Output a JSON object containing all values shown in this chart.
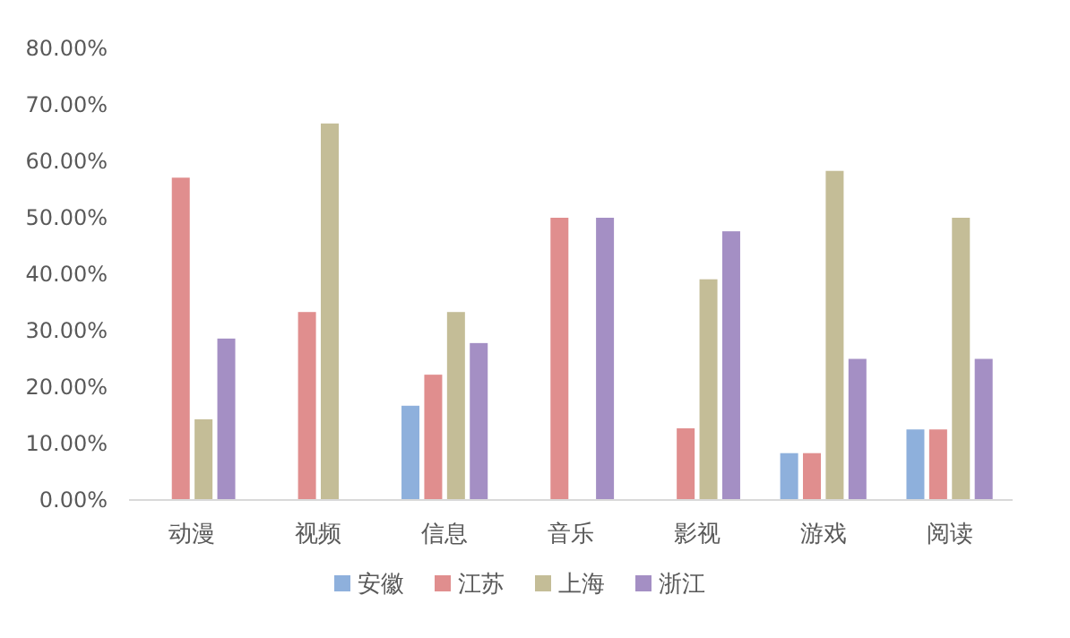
{
  "chart_data": {
    "type": "bar",
    "categories": [
      "动漫",
      "视频",
      "信息",
      "音乐",
      "影视",
      "游戏",
      "阅读"
    ],
    "series": [
      {
        "name": "安徽",
        "color": "#8eb0dc",
        "values": [
          0,
          0,
          16.7,
          0,
          0,
          8.3,
          12.5
        ]
      },
      {
        "name": "江苏",
        "color": "#e08e8e",
        "values": [
          57.1,
          33.3,
          22.2,
          50,
          12.7,
          8.3,
          12.5
        ]
      },
      {
        "name": "上海",
        "color": "#c4bd97",
        "values": [
          14.3,
          66.7,
          33.3,
          0,
          39.1,
          58.3,
          50
        ]
      },
      {
        "name": "浙江",
        "color": "#a48fc4",
        "values": [
          28.6,
          0,
          27.8,
          50,
          47.6,
          25,
          25
        ]
      }
    ],
    "ylim": [
      0,
      80
    ],
    "yticks": [
      {
        "value": 0,
        "label": "0.00%"
      },
      {
        "value": 10,
        "label": "10.00%"
      },
      {
        "value": 20,
        "label": "20.00%"
      },
      {
        "value": 30,
        "label": "30.00%"
      },
      {
        "value": 40,
        "label": "40.00%"
      },
      {
        "value": 50,
        "label": "50.00%"
      },
      {
        "value": 60,
        "label": "60.00%"
      },
      {
        "value": 70,
        "label": "70.00%"
      },
      {
        "value": 80,
        "label": "80.00%"
      }
    ],
    "grid": false,
    "legend": "bottom"
  }
}
